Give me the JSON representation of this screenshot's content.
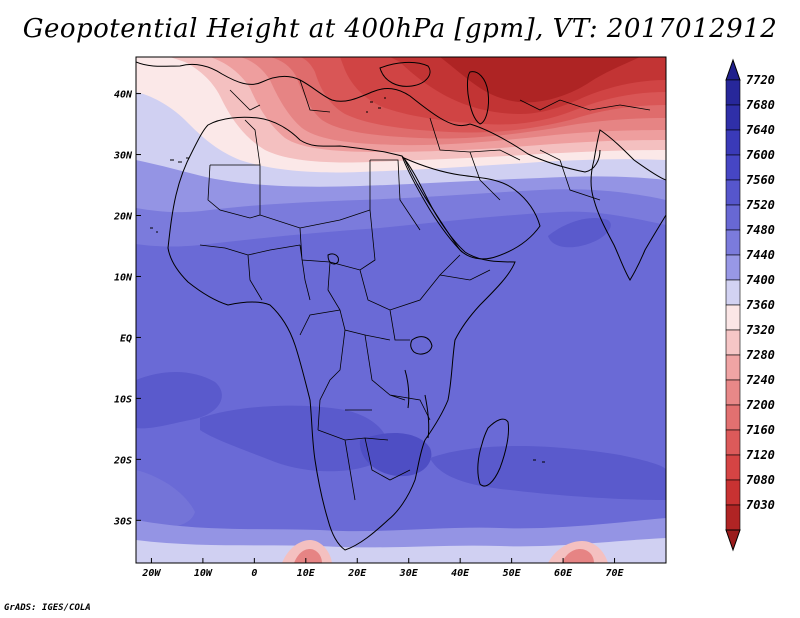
{
  "title": "Geopotential Height at 400hPa [gpm], VT: 2017012912",
  "credit": "GrADS: IGES/COLA",
  "map": {
    "lon_range": [
      -23,
      80
    ],
    "lat_range": [
      -37,
      46
    ],
    "x_ticks": [
      {
        "value": -20,
        "label": "20W"
      },
      {
        "value": -10,
        "label": "10W"
      },
      {
        "value": 0,
        "label": "0"
      },
      {
        "value": 10,
        "label": "10E"
      },
      {
        "value": 20,
        "label": "20E"
      },
      {
        "value": 30,
        "label": "30E"
      },
      {
        "value": 40,
        "label": "40E"
      },
      {
        "value": 50,
        "label": "50E"
      },
      {
        "value": 60,
        "label": "60E"
      },
      {
        "value": 70,
        "label": "70E"
      }
    ],
    "y_ticks": [
      {
        "value": 40,
        "label": "40N"
      },
      {
        "value": 30,
        "label": "30N"
      },
      {
        "value": 20,
        "label": "20N"
      },
      {
        "value": 10,
        "label": "10N"
      },
      {
        "value": 0,
        "label": "EQ"
      },
      {
        "value": -10,
        "label": "10S"
      },
      {
        "value": -20,
        "label": "20S"
      },
      {
        "value": -30,
        "label": "30S"
      }
    ]
  },
  "colorbar": {
    "levels": [
      {
        "label": "7720",
        "color": "#27279a"
      },
      {
        "label": "7680",
        "color": "#2f2fa8"
      },
      {
        "label": "7640",
        "color": "#3a3ab8"
      },
      {
        "label": "7600",
        "color": "#4646c4"
      },
      {
        "label": "7560",
        "color": "#5656cc"
      },
      {
        "label": "7520",
        "color": "#6868d4"
      },
      {
        "label": "7480",
        "color": "#7b7bdc"
      },
      {
        "label": "7440",
        "color": "#9898e6"
      },
      {
        "label": "7400",
        "color": "#d2d2f2"
      },
      {
        "label": "7360",
        "color": "#fbe6e6"
      },
      {
        "label": "7320",
        "color": "#f6c6c6"
      },
      {
        "label": "7280",
        "color": "#f0a4a4"
      },
      {
        "label": "7240",
        "color": "#e88888"
      },
      {
        "label": "7200",
        "color": "#e27070"
      },
      {
        "label": "7160",
        "color": "#dc5a5a"
      },
      {
        "label": "7120",
        "color": "#d54444"
      },
      {
        "label": "7080",
        "color": "#c83232"
      },
      {
        "label": "7030",
        "color": "#b02424"
      }
    ],
    "top_color": "#20208c",
    "bottom_color": "#9a1c1c"
  }
}
